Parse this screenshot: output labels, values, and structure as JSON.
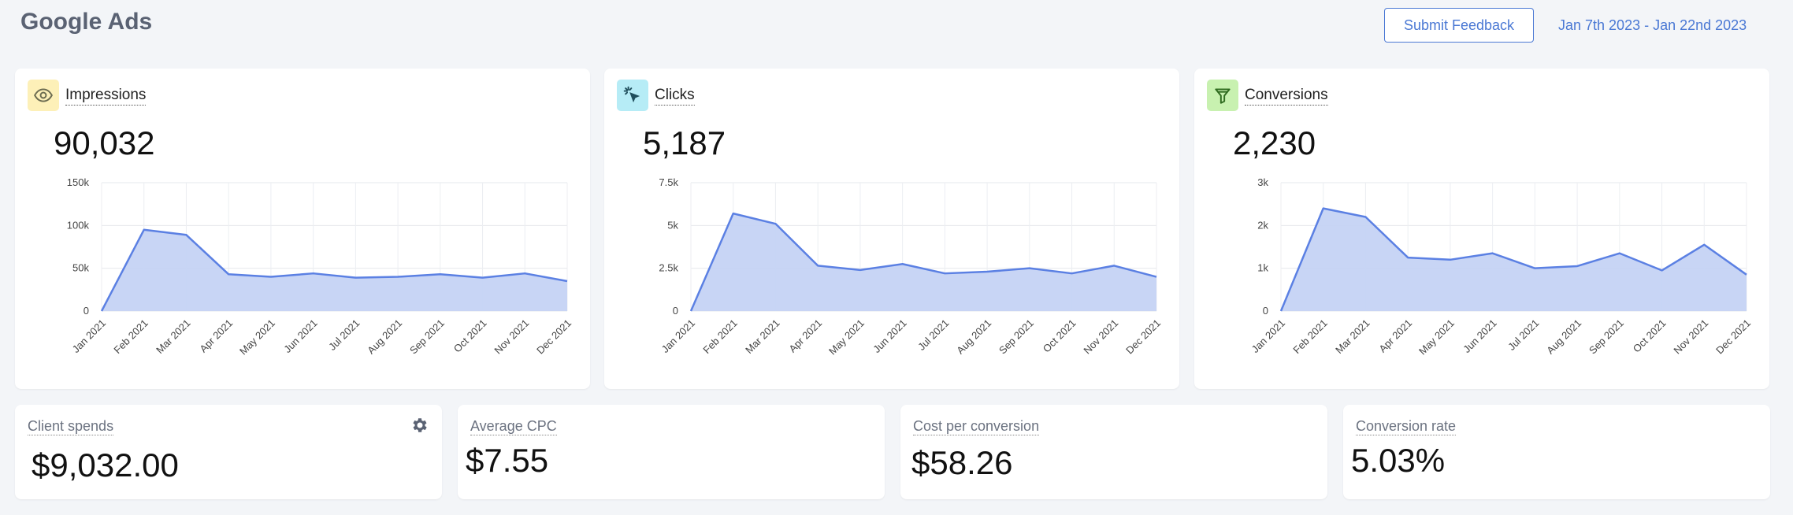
{
  "header": {
    "title": "Google Ads",
    "feedback_label": "Submit Feedback",
    "date_range": "Jan 7th 2023 - Jan 22nd 2023"
  },
  "colors": {
    "accent": "#4a78d4",
    "line": "#5b80e3",
    "area": "#c5d3f4",
    "impressions_icon_bg": "#fdf0b8",
    "clicks_icon_bg": "#b6ecf6",
    "conversions_icon_bg": "#c8f1b0"
  },
  "cards": [
    {
      "id": "impressions",
      "label": "Impressions",
      "value": "90,032",
      "icon": "eye-icon"
    },
    {
      "id": "clicks",
      "label": "Clicks",
      "value": "5,187",
      "icon": "cursor-click-icon"
    },
    {
      "id": "conversions",
      "label": "Conversions",
      "value": "2,230",
      "icon": "funnel-icon"
    }
  ],
  "chart_data": [
    {
      "type": "area",
      "categories": [
        "Jan 2021",
        "Feb 2021",
        "Mar 2021",
        "Apr 2021",
        "May 2021",
        "Jun 2021",
        "Jul 2021",
        "Aug 2021",
        "Sep 2021",
        "Oct 2021",
        "Nov 2021",
        "Dec 2021"
      ],
      "values": [
        0,
        95000,
        89000,
        43000,
        40000,
        44000,
        39000,
        40000,
        43000,
        39000,
        44000,
        35000
      ],
      "ylim": [
        0,
        150000
      ],
      "yticks": [
        "0",
        "50k",
        "100k",
        "150k"
      ],
      "ytick_values": [
        0,
        50000,
        100000,
        150000
      ],
      "grid": true
    },
    {
      "type": "area",
      "categories": [
        "Jan 2021",
        "Feb 2021",
        "Mar 2021",
        "Apr 2021",
        "May 2021",
        "Jun 2021",
        "Jul 2021",
        "Aug 2021",
        "Sep 2021",
        "Oct 2021",
        "Nov 2021",
        "Dec 2021"
      ],
      "values": [
        0,
        5700,
        5100,
        2650,
        2400,
        2750,
        2200,
        2300,
        2500,
        2200,
        2650,
        2000
      ],
      "ylim": [
        0,
        7500
      ],
      "yticks": [
        "0",
        "2.5k",
        "5k",
        "7.5k"
      ],
      "ytick_values": [
        0,
        2500,
        5000,
        7500
      ],
      "grid": true
    },
    {
      "type": "area",
      "categories": [
        "Jan 2021",
        "Feb 2021",
        "Mar 2021",
        "Apr 2021",
        "May 2021",
        "Jun 2021",
        "Jul 2021",
        "Aug 2021",
        "Sep 2021",
        "Oct 2021",
        "Nov 2021",
        "Dec 2021"
      ],
      "values": [
        0,
        2400,
        2200,
        1250,
        1200,
        1350,
        1000,
        1050,
        1350,
        950,
        1550,
        850
      ],
      "ylim": [
        0,
        3000
      ],
      "yticks": [
        "0",
        "1k",
        "2k",
        "3k"
      ],
      "ytick_values": [
        0,
        1000,
        2000,
        3000
      ],
      "grid": true
    }
  ],
  "stats": [
    {
      "label": "Client spends",
      "value": "$9,032.00",
      "icon": "gear-icon"
    },
    {
      "label": "Average CPC",
      "value": "$7.55"
    },
    {
      "label": "Cost per conversion",
      "value": "$58.26"
    },
    {
      "label": "Conversion rate",
      "value": "5.03%"
    }
  ]
}
